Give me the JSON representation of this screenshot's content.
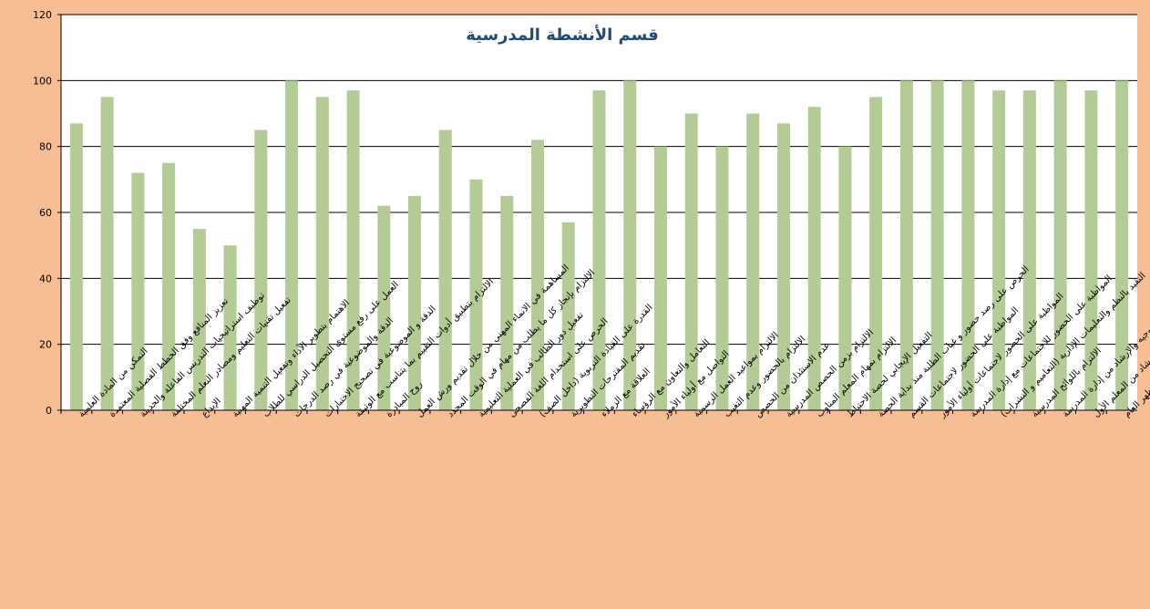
{
  "chart_data": {
    "type": "bar",
    "title": "قسم الأنشطة المدرسية",
    "xlabel": "",
    "ylabel": "",
    "ylim": [
      0,
      120
    ],
    "yticks": [
      0,
      20,
      40,
      60,
      80,
      100,
      120
    ],
    "grid": true,
    "legend": "none",
    "colors": {
      "bar": "#b3cb94",
      "plot_background": "#ffffff",
      "chart_background": "#f8be93",
      "title": "#1f4a7a",
      "axis": "#000000"
    },
    "categories": [
      "التمكن من المادة العلمية",
      "تعزيز المنافع وفق الخطط الفصلية المعتمدة",
      "توظيف استراتيجيات التدريس الفاعلة والحديثة",
      "تفعيل تقنيات التعليم ومصادر التعلم المختلفة",
      "الإبداع",
      "الاهتمام بتطوير الأداء وتفعيل التنمية المهنية",
      "العمل على رفع مستوى التحصيل الدراسي للطلاب",
      "الدقة والموضوعية في رصد الدرجات",
      "الدقة و الموضوعية في تصحيح الاختبارات",
      "الالتزام بتطبيق أدوات التقييم بما يتناسب مع الوثيقة",
      "روح المبادرة",
      "المساهمة في الانماء المهني من خلال تقديم ورش العمل",
      "الالتزام بإنجاز كل ما يطلب من مهام في الوقت المحدد",
      "تفعيل دور الطالب في العملية التعليمية",
      "الحرص على استخدام اللغة الفصحى",
      "القدرة على القيادة التربوية (داخل الصف)",
      "تقديم المقترحات التطويرية",
      "العلاقة مع الزملاء",
      "التعامل والتعاون مع الرؤساء",
      "التواصل مع أولياء الأمور",
      "الالتزام بمواعيد العمل الرسمية",
      "الالتزام بالحضور وعدم التغيب",
      "عدم الاستئذان من الحصص",
      "الالتزام بزمن الحصص المدرسية",
      "الالتزام بمهام المعلم المناوب",
      "التفعيل الإيجابي لحصة الاحتياط",
      "الحرص على رصد حضور و غياب الطلبة منذ بداية الحصة",
      "المواظبة على الحضور لاجتماعات القسم",
      "المواظبة على الحضور لاجتماعات أولياء الأمور",
      "المواظبة على الحضور للاجتماعات مع إدارة المدرسة",
      "التقيد بالنظم والتعليمات الإدارية (التعاميم و النشرات)",
      "الالتزام باللوائح المدرسية",
      "تقبل التوجيه والإرشاد من إدارة المدرسة",
      "تقبل التوجيه والإرشاد من المعلم الأول",
      "الاهتمام بالمظهر العام"
    ],
    "values": [
      87,
      95,
      72,
      75,
      55,
      50,
      85,
      100,
      95,
      97,
      62,
      65,
      85,
      70,
      65,
      82,
      57,
      97,
      100,
      80,
      90,
      80,
      90,
      87,
      92,
      80,
      95,
      100,
      100,
      100,
      97,
      97,
      100,
      97,
      100
    ]
  }
}
